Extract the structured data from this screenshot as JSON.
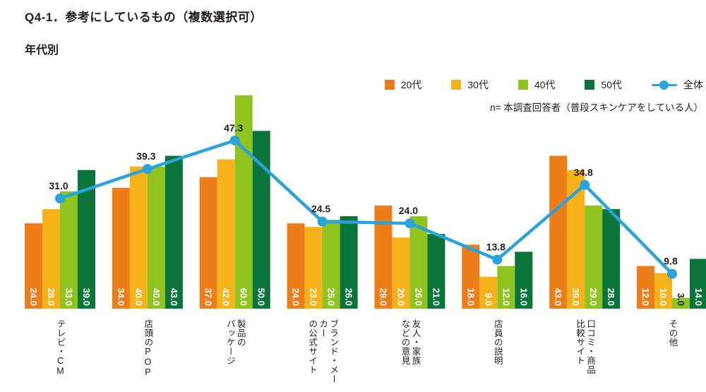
{
  "header": {
    "title": "Q4-1．参考にしているもの（複数選択可）",
    "subtitle": "年代別"
  },
  "legend": {
    "items": [
      {
        "label": "20代",
        "color": "#ED7D18",
        "marker": "square"
      },
      {
        "label": "30代",
        "color": "#F6B21B",
        "marker": "square"
      },
      {
        "label": "40代",
        "color": "#8FC31F",
        "marker": "square"
      },
      {
        "label": "50代",
        "color": "#0A743A",
        "marker": "square"
      },
      {
        "label": "全体",
        "color": "#29A3DC",
        "marker": "line-dot"
      }
    ],
    "note": "n= 本調査回答者（普段スキンケアをしている人）"
  },
  "chart_data": {
    "type": "bar",
    "subtype": "grouped-bar-with-overall-line",
    "title": "Q4-1．参考にしているもの（複数選択可）",
    "subtitle": "年代別",
    "categories": [
      "テレビ・CM",
      "店頭のPOP",
      "製品の\nパッケージ",
      "ブランド・メーカー\nの公式サイト",
      "友人・家族\nなどの意見",
      "店員の説明",
      "口コミ・商品\n比較サイト",
      "その他"
    ],
    "series": [
      {
        "name": "20代",
        "color": "#ED7D18",
        "values": [
          24.0,
          34.0,
          37.0,
          24.0,
          29.0,
          18.0,
          43.0,
          12.0
        ]
      },
      {
        "name": "30代",
        "color": "#F6B21B",
        "values": [
          28.0,
          40.0,
          42.0,
          23.0,
          20.0,
          9.0,
          39.0,
          10.0
        ]
      },
      {
        "name": "40代",
        "color": "#8FC31F",
        "values": [
          33.0,
          40.0,
          60.0,
          25.0,
          26.0,
          12.0,
          29.0,
          3.0
        ]
      },
      {
        "name": "50代",
        "color": "#0A743A",
        "values": [
          39.0,
          43.0,
          50.0,
          26.0,
          21.0,
          16.0,
          28.0,
          14.0
        ]
      }
    ],
    "line_series": {
      "name": "全体",
      "color": "#29A3DC",
      "values": [
        31.0,
        39.3,
        47.3,
        24.5,
        24.0,
        13.8,
        34.8,
        9.8
      ]
    },
    "ylim": [
      0,
      67
    ],
    "grid": false,
    "legend_position": "top-right",
    "bar_value_labels": "one decimal, rotated 90°, white, at bar base",
    "line_value_labels": "one decimal, black, above each point"
  },
  "colors": {
    "background": "#FFFFFF",
    "text": "#221D1A",
    "bar_label_light": "#FFFFFF",
    "bar_label_dark": "#221D1A"
  }
}
